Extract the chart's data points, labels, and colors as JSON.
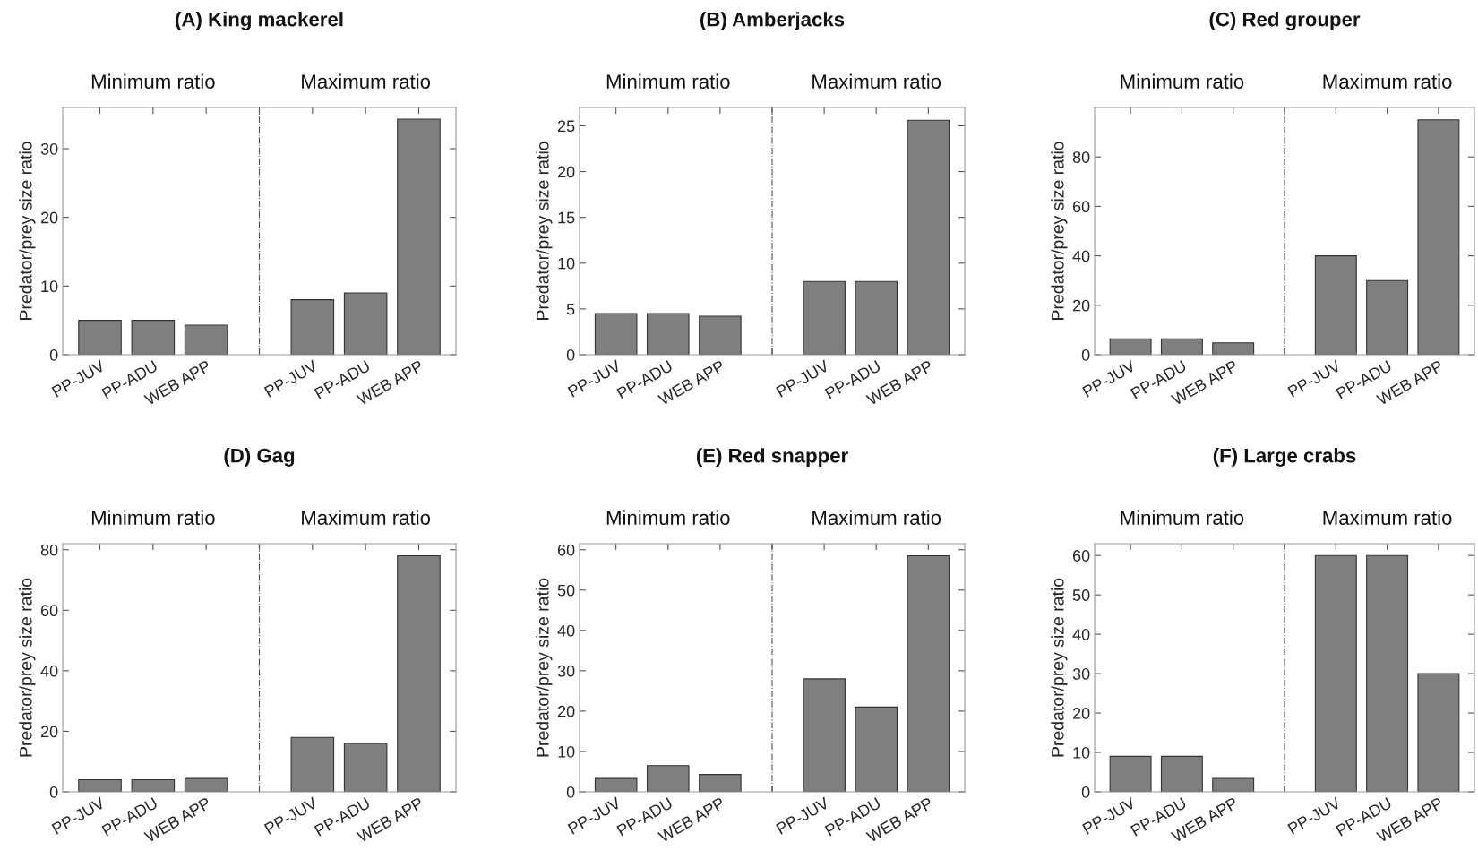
{
  "chart_data": [
    {
      "type": "bar",
      "title": "(A) King mackerel",
      "ylabel": "Predator/prey size ratio",
      "annotations": [
        "Minimum ratio",
        "Maximum ratio"
      ],
      "categories": [
        "PP-JUV",
        "PP-ADU",
        "WEB APP",
        null,
        "PP-JUV",
        "PP-ADU",
        "WEB APP"
      ],
      "values": [
        5,
        5,
        4.3,
        null,
        8,
        9,
        34.3
      ],
      "color": "#7f7f7f",
      "ylim": [
        0,
        36
      ],
      "yticks": [
        0,
        10,
        20,
        30
      ]
    },
    {
      "type": "bar",
      "title": "(B) Amberjacks",
      "ylabel": "Predator/prey size ratio",
      "annotations": [
        "Minimum ratio",
        "Maximum ratio"
      ],
      "categories": [
        "PP-JUV",
        "PP-ADU",
        "WEB APP",
        null,
        "PP-JUV",
        "PP-ADU",
        "WEB APP"
      ],
      "values": [
        4.5,
        4.5,
        4.2,
        null,
        8,
        8,
        25.6
      ],
      "color": "#7f7f7f",
      "ylim": [
        0,
        27
      ],
      "yticks": [
        0,
        5,
        10,
        15,
        20,
        25
      ]
    },
    {
      "type": "bar",
      "title": "(C) Red grouper",
      "ylabel": "Predator/prey size ratio",
      "annotations": [
        "Minimum ratio",
        "Maximum ratio"
      ],
      "categories": [
        "PP-JUV",
        "PP-ADU",
        "WEB APP",
        null,
        "PP-JUV",
        "PP-ADU",
        "WEB APP"
      ],
      "values": [
        6.4,
        6.4,
        4.8,
        null,
        40,
        30,
        95
      ],
      "color": "#7f7f7f",
      "ylim": [
        0,
        100
      ],
      "yticks": [
        0,
        20,
        40,
        60,
        80
      ]
    },
    {
      "type": "bar",
      "title": "(D) Gag",
      "ylabel": "Predator/prey size ratio",
      "annotations": [
        "Minimum ratio",
        "Maximum ratio"
      ],
      "categories": [
        "PP-JUV",
        "PP-ADU",
        "WEB APP",
        null,
        "PP-JUV",
        "PP-ADU",
        "WEB APP"
      ],
      "values": [
        4,
        4,
        4.4,
        null,
        18,
        16,
        78
      ],
      "color": "#7f7f7f",
      "ylim": [
        0,
        82
      ],
      "yticks": [
        0,
        20,
        40,
        60,
        80
      ]
    },
    {
      "type": "bar",
      "title": "(E) Red snapper",
      "ylabel": "Predator/prey size ratio",
      "annotations": [
        "Minimum ratio",
        "Maximum ratio"
      ],
      "categories": [
        "PP-JUV",
        "PP-ADU",
        "WEB APP",
        null,
        "PP-JUV",
        "PP-ADU",
        "WEB APP"
      ],
      "values": [
        3.3,
        6.5,
        4.3,
        null,
        28,
        21,
        58.5
      ],
      "color": "#7f7f7f",
      "ylim": [
        0,
        61.5
      ],
      "yticks": [
        0,
        10,
        20,
        30,
        40,
        50,
        60
      ]
    },
    {
      "type": "bar",
      "title": "(F) Large crabs",
      "ylabel": "Predator/prey size ratio",
      "annotations": [
        "Minimum ratio",
        "Maximum ratio"
      ],
      "categories": [
        "PP-JUV",
        "PP-ADU",
        "WEB APP",
        null,
        "PP-JUV",
        "PP-ADU",
        "WEB APP"
      ],
      "values": [
        9,
        9,
        3.4,
        null,
        60,
        60,
        30
      ],
      "color": "#7f7f7f",
      "ylim": [
        0,
        63
      ],
      "yticks": [
        0,
        10,
        20,
        30,
        40,
        50,
        60
      ]
    }
  ]
}
